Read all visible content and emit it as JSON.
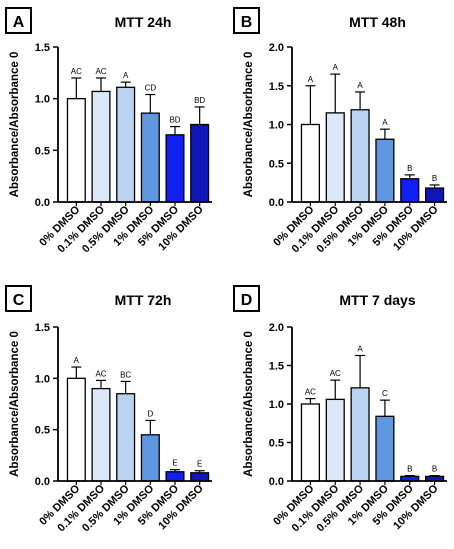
{
  "palette": [
    "#ffffff",
    "#dbe8f8",
    "#b9d3f1",
    "#5f97e0",
    "#0f20f0",
    "#1016b8"
  ],
  "chart_data": [
    {
      "panel": "A",
      "type": "bar",
      "title": "MTT 24h",
      "ylabel": "Absorbance/Absorbance 0",
      "ylim": [
        0,
        1.5
      ],
      "yticks": [
        "0.0",
        "0.5",
        "1.0",
        "1.5"
      ],
      "categories": [
        "0% DMSO",
        "0.1% DMSO",
        "0.5% DMSO",
        "1% DMSO",
        "5% DMSO",
        "10% DMSO"
      ],
      "values": [
        1.0,
        1.07,
        1.11,
        0.86,
        0.65,
        0.75
      ],
      "errors": [
        0.2,
        0.13,
        0.05,
        0.18,
        0.08,
        0.17
      ],
      "significance": [
        "AC",
        "AC",
        "A",
        "CD",
        "BD",
        "BD"
      ],
      "grid": false
    },
    {
      "panel": "B",
      "type": "bar",
      "title": "MTT 48h",
      "ylabel": "Absorbance/Absorbance 0",
      "ylim": [
        0,
        2.0
      ],
      "yticks": [
        "0.0",
        "0.5",
        "1.0",
        "1.5",
        "2.0"
      ],
      "categories": [
        "0% DMSO",
        "0.1% DMSO",
        "0.5% DMSO",
        "1% DMSO",
        "5% DMSO",
        "10% DMSO"
      ],
      "values": [
        1.0,
        1.15,
        1.19,
        0.81,
        0.3,
        0.18
      ],
      "errors": [
        0.5,
        0.5,
        0.23,
        0.13,
        0.05,
        0.04
      ],
      "significance": [
        "A",
        "A",
        "A",
        "A",
        "B",
        "B"
      ],
      "grid": false
    },
    {
      "panel": "C",
      "type": "bar",
      "title": "MTT 72h",
      "ylabel": "Absorbance/Absorbance 0",
      "ylim": [
        0,
        1.5
      ],
      "yticks": [
        "0.0",
        "0.5",
        "1.0",
        "1.5"
      ],
      "categories": [
        "0% DMSO",
        "0.1% DMSO",
        "0.5% DMSO",
        "1% DMSO",
        "5% DMSO",
        "10% DMSO"
      ],
      "values": [
        1.0,
        0.9,
        0.85,
        0.45,
        0.09,
        0.08
      ],
      "errors": [
        0.11,
        0.08,
        0.12,
        0.14,
        0.02,
        0.02
      ],
      "significance": [
        "A",
        "AC",
        "BC",
        "D",
        "E",
        "E"
      ],
      "grid": false
    },
    {
      "panel": "D",
      "type": "bar",
      "title": "MTT 7 days",
      "ylabel": "Absorbance/Absorbance 0",
      "ylim": [
        0,
        2.0
      ],
      "yticks": [
        "0.0",
        "0.5",
        "1.0",
        "1.5",
        "2.0"
      ],
      "categories": [
        "0% DMSO",
        "0.1% DMSO",
        "0.5% DMSO",
        "1% DMSO",
        "5% DMSO",
        "10% DMSO"
      ],
      "values": [
        1.0,
        1.06,
        1.21,
        0.84,
        0.06,
        0.06
      ],
      "errors": [
        0.07,
        0.25,
        0.42,
        0.21,
        0.01,
        0.01
      ],
      "significance": [
        "AC",
        "AC",
        "A",
        "C",
        "B",
        "B"
      ],
      "grid": false
    }
  ]
}
